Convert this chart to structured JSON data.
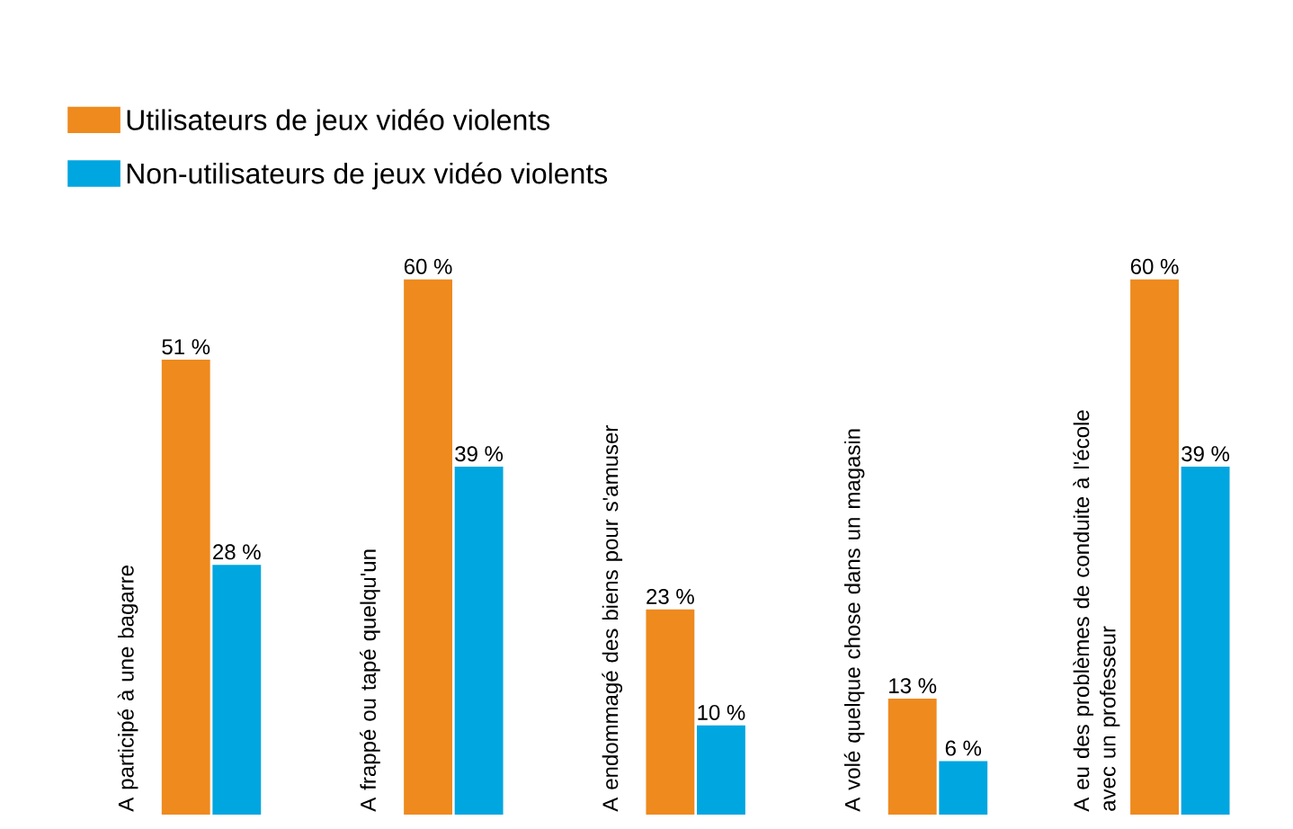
{
  "chart_data": {
    "type": "bar",
    "categories": [
      "A participé à une bagarre",
      "A frappé ou tapé quelqu'un",
      "A endommagé des biens pour s'amuser",
      "A volé quelque chose dans un magasin",
      "A eu des problèmes de conduite à l'école avec un professeur"
    ],
    "series": [
      {
        "name": "Utilisateurs de jeux vidéo violents",
        "color": "#ee8a1e",
        "values": [
          51,
          60,
          23,
          13,
          60
        ],
        "value_labels": [
          "51 %",
          "60 %",
          "23 %",
          "13 %",
          "60 %"
        ]
      },
      {
        "name": "Non-utilisateurs de jeux vidéo violents",
        "color": "#00a6e0",
        "values": [
          28,
          39,
          10,
          6,
          39
        ],
        "value_labels": [
          "28 %",
          "39 %",
          "10 %",
          "6 %",
          "39 %"
        ]
      }
    ],
    "legend": "top left"
  }
}
